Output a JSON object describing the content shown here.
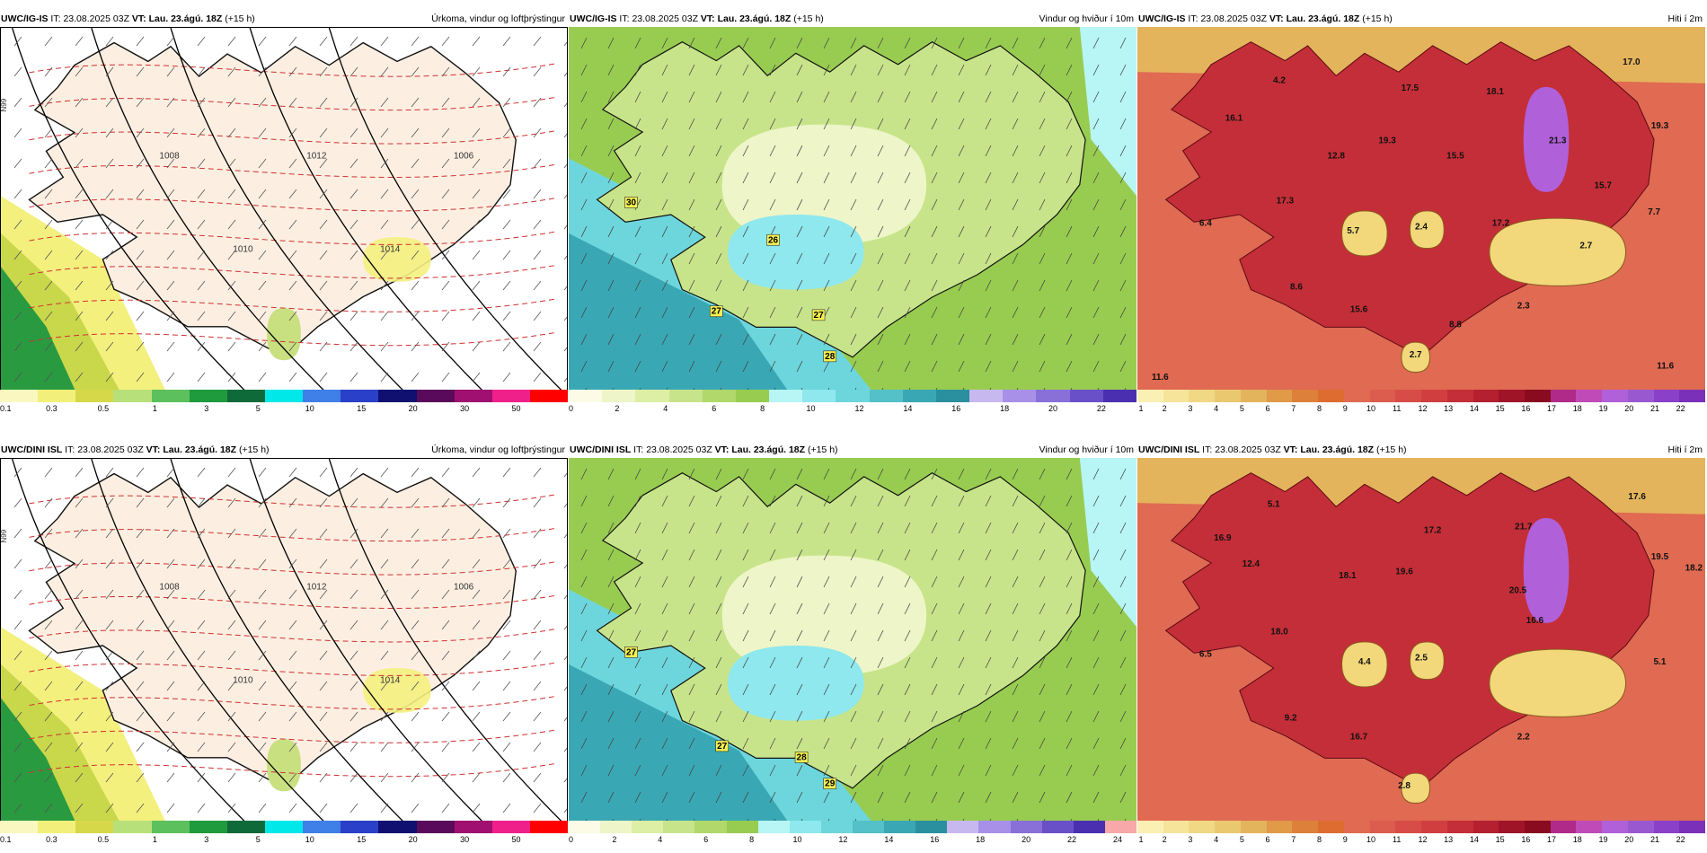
{
  "rows": [
    {
      "model": "UWC/IG-IS",
      "it_label": "IT:",
      "it_value": "23.08.2025 03Z",
      "vt_label": "VT:",
      "vt_value": "Lau. 23.ágú. 18Z",
      "lead": "(+15 h)",
      "labels_wind": [
        {
          "v": "30",
          "fx": 0.11,
          "fy": 0.47
        },
        {
          "v": "26",
          "fx": 0.36,
          "fy": 0.57
        },
        {
          "v": "27",
          "fx": 0.26,
          "fy": 0.76
        },
        {
          "v": "27",
          "fx": 0.44,
          "fy": 0.77
        },
        {
          "v": "28",
          "fx": 0.46,
          "fy": 0.88
        }
      ],
      "labels_temp": [
        {
          "v": "4.2",
          "fx": 0.25,
          "fy": 0.15
        },
        {
          "v": "16.1",
          "fx": 0.17,
          "fy": 0.25
        },
        {
          "v": "17.5",
          "fx": 0.48,
          "fy": 0.17
        },
        {
          "v": "18.1",
          "fx": 0.63,
          "fy": 0.18
        },
        {
          "v": "17.0",
          "fx": 0.87,
          "fy": 0.1
        },
        {
          "v": "12.8",
          "fx": 0.35,
          "fy": 0.35
        },
        {
          "v": "19.3",
          "fx": 0.44,
          "fy": 0.31
        },
        {
          "v": "15.5",
          "fx": 0.56,
          "fy": 0.35
        },
        {
          "v": "21.3",
          "fx": 0.74,
          "fy": 0.31
        },
        {
          "v": "19.3",
          "fx": 0.92,
          "fy": 0.27
        },
        {
          "v": "17.3",
          "fx": 0.26,
          "fy": 0.47
        },
        {
          "v": "6.4",
          "fx": 0.12,
          "fy": 0.53
        },
        {
          "v": "5.7",
          "fx": 0.38,
          "fy": 0.55
        },
        {
          "v": "2.4",
          "fx": 0.5,
          "fy": 0.54
        },
        {
          "v": "17.2",
          "fx": 0.64,
          "fy": 0.53
        },
        {
          "v": "15.7",
          "fx": 0.82,
          "fy": 0.43
        },
        {
          "v": "7.7",
          "fx": 0.91,
          "fy": 0.5
        },
        {
          "v": "2.7",
          "fx": 0.79,
          "fy": 0.59
        },
        {
          "v": "8.6",
          "fx": 0.28,
          "fy": 0.7
        },
        {
          "v": "15.6",
          "fx": 0.39,
          "fy": 0.76
        },
        {
          "v": "2.3",
          "fx": 0.68,
          "fy": 0.75
        },
        {
          "v": "8.8",
          "fx": 0.56,
          "fy": 0.8
        },
        {
          "v": "2.7",
          "fx": 0.49,
          "fy": 0.88
        },
        {
          "v": "11.6",
          "fx": 0.04,
          "fy": 0.94
        },
        {
          "v": "11.6",
          "fx": 0.93,
          "fy": 0.91
        }
      ]
    },
    {
      "model": "UWC/DINI ISL",
      "it_label": "IT:",
      "it_value": "23.08.2025 03Z",
      "vt_label": "VT:",
      "vt_value": "Lau. 23.ágú. 18Z",
      "lead": "(+15 h)",
      "labels_wind": [
        {
          "v": "27",
          "fx": 0.11,
          "fy": 0.52
        },
        {
          "v": "27",
          "fx": 0.27,
          "fy": 0.77
        },
        {
          "v": "28",
          "fx": 0.41,
          "fy": 0.8
        },
        {
          "v": "29",
          "fx": 0.46,
          "fy": 0.87
        }
      ],
      "labels_temp": [
        {
          "v": "5.1",
          "fx": 0.24,
          "fy": 0.13
        },
        {
          "v": "16.9",
          "fx": 0.15,
          "fy": 0.22
        },
        {
          "v": "17.2",
          "fx": 0.52,
          "fy": 0.2
        },
        {
          "v": "21.7",
          "fx": 0.68,
          "fy": 0.19
        },
        {
          "v": "17.6",
          "fx": 0.88,
          "fy": 0.11
        },
        {
          "v": "12.4",
          "fx": 0.2,
          "fy": 0.29
        },
        {
          "v": "18.1",
          "fx": 0.37,
          "fy": 0.32
        },
        {
          "v": "19.6",
          "fx": 0.47,
          "fy": 0.31
        },
        {
          "v": "20.5",
          "fx": 0.67,
          "fy": 0.36
        },
        {
          "v": "19.5",
          "fx": 0.92,
          "fy": 0.27
        },
        {
          "v": "18.2",
          "fx": 0.98,
          "fy": 0.3
        },
        {
          "v": "18.0",
          "fx": 0.25,
          "fy": 0.47
        },
        {
          "v": "16.6",
          "fx": 0.7,
          "fy": 0.44
        },
        {
          "v": "6.5",
          "fx": 0.12,
          "fy": 0.53
        },
        {
          "v": "4.4",
          "fx": 0.4,
          "fy": 0.55
        },
        {
          "v": "2.5",
          "fx": 0.5,
          "fy": 0.54
        },
        {
          "v": "5.1",
          "fx": 0.92,
          "fy": 0.55
        },
        {
          "v": "9.2",
          "fx": 0.27,
          "fy": 0.7
        },
        {
          "v": "16.7",
          "fx": 0.39,
          "fy": 0.75
        },
        {
          "v": "2.2",
          "fx": 0.68,
          "fy": 0.75
        },
        {
          "v": "2.8",
          "fx": 0.47,
          "fy": 0.88
        }
      ]
    }
  ],
  "panel_titles": {
    "precip": "Úrkoma, vindur og loftþrýstingur",
    "wind": "Vindur og hviður í 10m",
    "temp": "Hiti í 2m"
  },
  "isobar_labels": [
    "1008",
    "1010",
    "1012",
    "1014",
    "1006"
  ],
  "lat_label": "N99",
  "colorbars": {
    "precip": {
      "colors": [
        "#fbf7c0",
        "#f2f07a",
        "#d6d84a",
        "#b8e07a",
        "#5cc05c",
        "#1f9a3c",
        "#0f6a3a",
        "#00e8e8",
        "#3f7fe8",
        "#2a40c8",
        "#101070",
        "#5a0a5a",
        "#a01070",
        "#f0208a",
        "#ff0000"
      ],
      "ticks": [
        "0.1",
        "0.3",
        "0.5",
        "1",
        "3",
        "5",
        "10",
        "15",
        "20",
        "30",
        "50"
      ]
    },
    "wind": {
      "colors_top": [
        "#fbfbe6",
        "#eef5c8",
        "#ddeea5",
        "#c8e48a",
        "#b0d86a",
        "#98cc50",
        "#b8f5f5",
        "#8ee8ee",
        "#6dd6dc",
        "#54c0c8",
        "#3aa8b4",
        "#2a90a0",
        "#c8b8f0",
        "#a890e8",
        "#8870d8",
        "#6a50c8",
        "#4a30b0"
      ],
      "colors_bottom": [
        "#fbfbe6",
        "#eef5c8",
        "#ddeea5",
        "#c8e48a",
        "#b0d86a",
        "#98cc50",
        "#b8f5f5",
        "#8ee8ee",
        "#6dd6dc",
        "#54c0c8",
        "#3aa8b4",
        "#2a90a0",
        "#c8b8f0",
        "#a890e8",
        "#8870d8",
        "#6a50c8",
        "#4a30b0",
        "#f8a8a8"
      ],
      "ticks_top": [
        "0",
        "2",
        "4",
        "6",
        "8",
        "10",
        "12",
        "14",
        "16",
        "18",
        "20",
        "22"
      ],
      "ticks_bottom": [
        "0",
        "2",
        "4",
        "6",
        "8",
        "10",
        "12",
        "14",
        "16",
        "18",
        "20",
        "22",
        "24"
      ]
    },
    "temp": {
      "colors": [
        "#faf0b4",
        "#f6e49a",
        "#f0d884",
        "#eac870",
        "#e4b45c",
        "#e09a48",
        "#dd803a",
        "#de6c30",
        "#e06a52",
        "#dc5c4e",
        "#d84c48",
        "#d03e40",
        "#c42e38",
        "#b42030",
        "#a01428",
        "#8a0a20",
        "#b02a8a",
        "#c04ab8",
        "#b060d8",
        "#9a58d0",
        "#8a40c8",
        "#7a30b8"
      ],
      "ticks": [
        "1",
        "2",
        "3",
        "4",
        "5",
        "6",
        "7",
        "8",
        "9",
        "10",
        "11",
        "12",
        "13",
        "14",
        "15",
        "16",
        "17",
        "18",
        "19",
        "20",
        "21",
        "22"
      ]
    }
  },
  "colors": {
    "land_precip": "#fcefe2",
    "sea_precip": "#ffffff",
    "isobar": "#000000",
    "dashed_temp": "#d03030",
    "coast": "#111111",
    "glacier_temp": "#f2d87a"
  }
}
